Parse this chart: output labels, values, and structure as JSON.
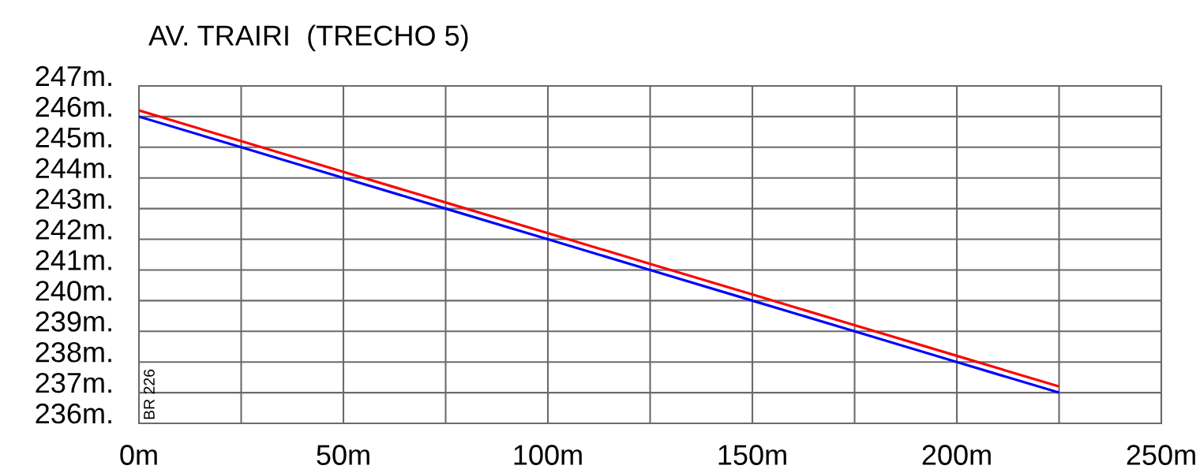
{
  "chart_data": {
    "type": "line",
    "title": "AV. TRAIRI  (TRECHO 5)",
    "x": [
      0,
      25,
      50,
      75,
      100,
      125,
      150,
      175,
      200,
      225
    ],
    "series": [
      {
        "color": "#0000ff",
        "values": [
          246.0,
          245.0,
          244.0,
          243.0,
          242.0,
          241.0,
          240.0,
          239.0,
          238.0,
          237.0
        ]
      },
      {
        "color": "#ff0000",
        "values": [
          246.2,
          245.2,
          244.2,
          243.2,
          242.2,
          241.2,
          240.2,
          239.2,
          238.2,
          237.2
        ]
      }
    ],
    "xlim": [
      0,
      250
    ],
    "xticks": [
      {
        "value": 0,
        "label": "0m"
      },
      {
        "value": 25,
        "label": null
      },
      {
        "value": 50,
        "label": "50m"
      },
      {
        "value": 75,
        "label": null
      },
      {
        "value": 100,
        "label": "100m"
      },
      {
        "value": 125,
        "label": null
      },
      {
        "value": 150,
        "label": "150m"
      },
      {
        "value": 175,
        "label": null
      },
      {
        "value": 200,
        "label": "200m"
      },
      {
        "value": 225,
        "label": null
      },
      {
        "value": 250,
        "label": "250m"
      }
    ],
    "ylim": [
      236,
      247
    ],
    "yticks": [
      {
        "value": 236,
        "label": "236m."
      },
      {
        "value": 237,
        "label": "237m."
      },
      {
        "value": 238,
        "label": "238m."
      },
      {
        "value": 239,
        "label": "239m."
      },
      {
        "value": 240,
        "label": "240m."
      },
      {
        "value": 241,
        "label": "241m."
      },
      {
        "value": 242,
        "label": "242m."
      },
      {
        "value": 243,
        "label": "243m."
      },
      {
        "value": 244,
        "label": "244m."
      },
      {
        "value": 245,
        "label": "245m."
      },
      {
        "value": 246,
        "label": "246m."
      },
      {
        "value": 247,
        "label": "247m."
      }
    ],
    "annotations": [
      "BR 226"
    ],
    "grid": true,
    "line_style": "solid"
  }
}
